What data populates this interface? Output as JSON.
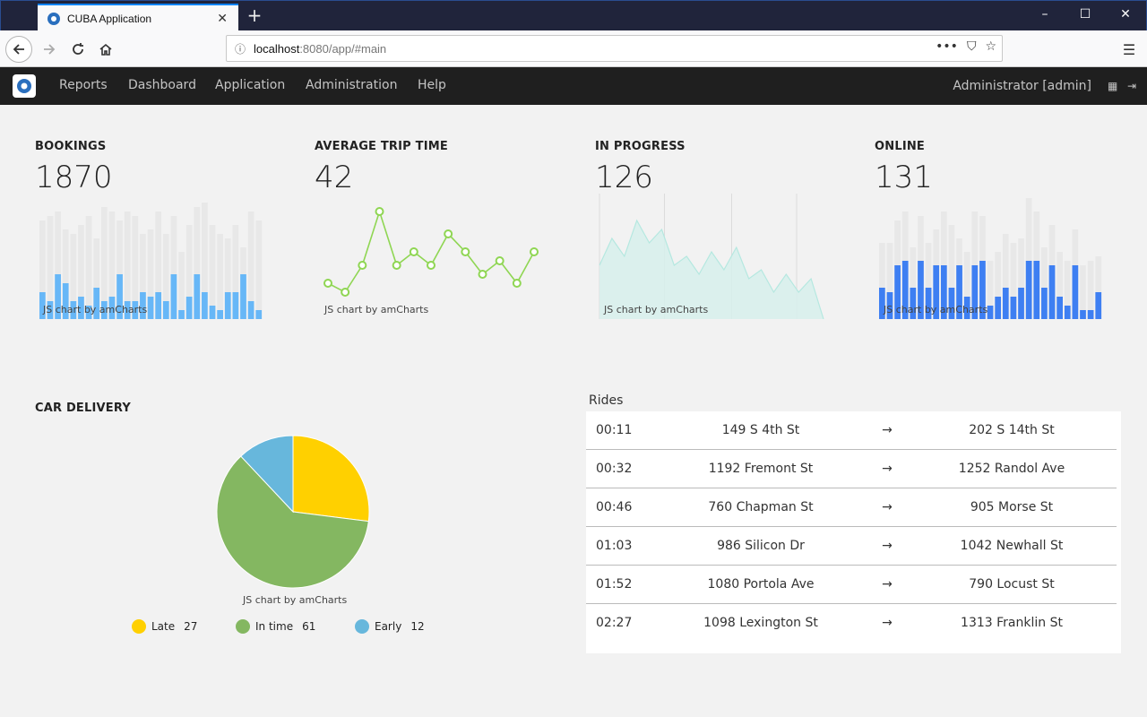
{
  "browser": {
    "tab_title": "CUBA Application",
    "url_host": "localhost",
    "url_rest": ":8080/app/#main"
  },
  "app": {
    "menu": [
      "Reports",
      "Dashboard",
      "Application",
      "Administration",
      "Help"
    ],
    "user": "Administrator [admin]"
  },
  "chart_credit": "JS chart by amCharts",
  "widgets": {
    "bookings": {
      "title": "BOOKINGS",
      "value": "1870"
    },
    "trip_time": {
      "title": "AVERAGE TRIP TIME",
      "value": "42"
    },
    "in_progress": {
      "title": "IN PROGRESS",
      "value": "126"
    },
    "online": {
      "title": "ONLINE",
      "value": "131"
    }
  },
  "car_delivery": {
    "title": "CAR DELIVERY"
  },
  "rides": {
    "caption": "Rides",
    "arrow": "→",
    "rows": [
      {
        "time": "00:11",
        "from": "149 S 4th St",
        "to": "202 S 14th St"
      },
      {
        "time": "00:32",
        "from": "1192 Fremont St",
        "to": "1252 Randol Ave"
      },
      {
        "time": "00:46",
        "from": "760 Chapman St",
        "to": "905 Morse St"
      },
      {
        "time": "01:03",
        "from": "986 Silicon Dr",
        "to": "1042 Newhall St"
      },
      {
        "time": "01:52",
        "from": "1080 Portola Ave",
        "to": "790 Locust St"
      },
      {
        "time": "02:27",
        "from": "1098 Lexington St",
        "to": "1313 Franklin St"
      }
    ]
  },
  "colors": {
    "bookings_bar": "#67b7f7",
    "bookings_bg_bar": "#e8e8e8",
    "trip_line": "#8fd653",
    "progress_area": "#d7f0ec",
    "progress_line": "#b5e8e0",
    "online_bar": "#3e7ff2",
    "late": "#ffd000",
    "in_time": "#84b761",
    "early": "#67b7dc"
  },
  "chart_data": [
    {
      "type": "bar",
      "name": "bookings",
      "values": [
        6,
        4,
        10,
        8,
        4,
        5,
        3,
        7,
        4,
        5,
        10,
        4,
        4,
        6,
        5,
        6,
        4,
        10,
        2,
        5,
        10,
        6,
        3,
        2,
        6,
        6,
        10,
        4,
        2
      ],
      "background": [
        22,
        23,
        24,
        20,
        19,
        21,
        23,
        18,
        25,
        24,
        22,
        24,
        23,
        19,
        20,
        24,
        19,
        23,
        15,
        21,
        25,
        26,
        21,
        19,
        18,
        21,
        16,
        24,
        22
      ],
      "ylim": [
        0,
        28
      ]
    },
    {
      "type": "line",
      "name": "trip_time",
      "values": [
        8,
        6,
        12,
        24,
        12,
        15,
        12,
        19,
        15,
        10,
        13,
        8,
        15
      ],
      "ylim": [
        0,
        28
      ]
    },
    {
      "type": "area",
      "name": "in_progress",
      "values": [
        12,
        18,
        14,
        22,
        17,
        20,
        12,
        14,
        10,
        15,
        11,
        16,
        9,
        11,
        6,
        10,
        6,
        9,
        0
      ],
      "ylim": [
        0,
        28
      ]
    },
    {
      "type": "bar",
      "name": "online",
      "values": [
        7,
        6,
        12,
        13,
        7,
        13,
        7,
        12,
        12,
        7,
        12,
        5,
        12,
        13,
        3,
        5,
        7,
        5,
        7,
        13,
        13,
        7,
        12,
        5,
        3,
        12,
        2,
        2,
        6
      ],
      "background": [
        17,
        17,
        22,
        24,
        16,
        23,
        17,
        20,
        24,
        21,
        18,
        15,
        24,
        23,
        13,
        15,
        19,
        17,
        18,
        27,
        24,
        16,
        21,
        15,
        13,
        20,
        12,
        13,
        14
      ],
      "ylim": [
        0,
        28
      ]
    },
    {
      "type": "pie",
      "name": "car_delivery",
      "slices": [
        {
          "label": "Late",
          "value": 27
        },
        {
          "label": "In time",
          "value": 61
        },
        {
          "label": "Early",
          "value": 12
        }
      ]
    }
  ]
}
